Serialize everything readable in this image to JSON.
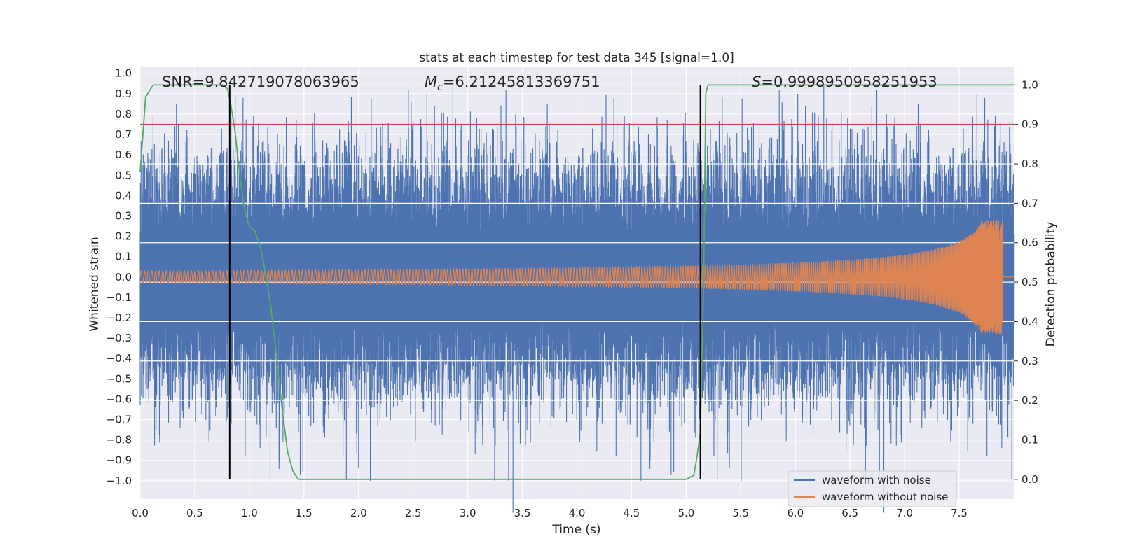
{
  "chart_data": {
    "type": "line",
    "title": "stats at each timestep for test data 345 [signal=1.0]",
    "xlabel": "Time (s)",
    "ylabel": "Whitened strain",
    "y2label": "Detection probability",
    "xlim": [
      0.0,
      8.0
    ],
    "ylim": [
      -1.09,
      1.03
    ],
    "y2lim": [
      -0.05,
      1.045
    ],
    "xticks": [
      "0.0",
      "0.5",
      "1.0",
      "1.5",
      "2.0",
      "2.5",
      "3.0",
      "3.5",
      "4.0",
      "4.5",
      "5.0",
      "5.5",
      "6.0",
      "6.5",
      "7.0",
      "7.5"
    ],
    "xtick_values": [
      0.0,
      0.5,
      1.0,
      1.5,
      2.0,
      2.5,
      3.0,
      3.5,
      4.0,
      4.5,
      5.0,
      5.5,
      6.0,
      6.5,
      7.0,
      7.5
    ],
    "yticks": [
      "1.0",
      "0.9",
      "0.8",
      "0.7",
      "0.6",
      "0.5",
      "0.4",
      "0.3",
      "0.2",
      "0.1",
      "0.0",
      "−0.1",
      "−0.2",
      "−0.3",
      "−0.4",
      "−0.5",
      "−0.6",
      "−0.7",
      "−0.8",
      "−0.9",
      "−1.0"
    ],
    "ytick_values": [
      1.0,
      0.9,
      0.8,
      0.7,
      0.6,
      0.5,
      0.4,
      0.3,
      0.2,
      0.1,
      0.0,
      -0.1,
      -0.2,
      -0.3,
      -0.4,
      -0.5,
      -0.6,
      -0.7,
      -0.8,
      -0.9,
      -1.0
    ],
    "y2ticks": [
      "1.0",
      "0.9",
      "0.8",
      "0.7",
      "0.6",
      "0.5",
      "0.4",
      "0.3",
      "0.2",
      "0.1",
      "0.0"
    ],
    "y2tick_values": [
      1.0,
      0.9,
      0.8,
      0.7,
      0.6,
      0.5,
      0.4,
      0.3,
      0.2,
      0.1,
      0.0
    ],
    "annotations": {
      "snr": "SNR=9.842719078063965",
      "mc_symbol": "M",
      "mc_sub": "c",
      "mc_value": "=6.21245813369751",
      "s_symbol": "S",
      "s_value": "=0.9998950958251953"
    },
    "threshold": {
      "value": 0.9,
      "axis": "y2",
      "color": "#c44e52"
    },
    "vertical_lines": [
      0.82,
      5.13
    ],
    "series": [
      {
        "name": "waveform with noise",
        "color": "#4c72b0",
        "kind": "noise",
        "amplitude_envelope": 0.45,
        "peak_range": [
          -1.0,
          0.92
        ]
      },
      {
        "name": "waveform without noise",
        "color": "#dd8452",
        "kind": "chirp",
        "start_amplitude": 0.03,
        "peak_amplitude": 0.28,
        "merger_time": 7.9
      },
      {
        "name": "detection probability",
        "color": "#55a868",
        "axis": "y2",
        "x": [
          0.0,
          0.05,
          0.12,
          0.2,
          0.4,
          0.6,
          0.75,
          0.8,
          0.83,
          0.87,
          0.9,
          0.95,
          1.0,
          1.05,
          1.1,
          1.15,
          1.2,
          1.25,
          1.3,
          1.35,
          1.4,
          1.45,
          1.5,
          2.0,
          3.0,
          4.0,
          4.5,
          5.0,
          5.07,
          5.1,
          5.13,
          5.16,
          5.18,
          5.2,
          5.25,
          5.3,
          5.5,
          6.0,
          7.0,
          8.0
        ],
        "values": [
          0.78,
          0.97,
          1.0,
          1.0,
          1.0,
          1.0,
          1.0,
          0.99,
          0.95,
          0.88,
          0.8,
          0.69,
          0.64,
          0.63,
          0.59,
          0.52,
          0.43,
          0.31,
          0.18,
          0.07,
          0.02,
          0.0,
          0.0,
          0.0,
          0.0,
          0.0,
          0.0,
          0.0,
          0.01,
          0.06,
          0.12,
          0.5,
          0.98,
          1.0,
          1.0,
          1.0,
          1.0,
          1.0,
          1.0,
          1.0
        ]
      }
    ],
    "legend": {
      "placement": "lower-right",
      "entries": [
        "waveform with noise",
        "waveform without noise"
      ]
    },
    "grid": true
  }
}
